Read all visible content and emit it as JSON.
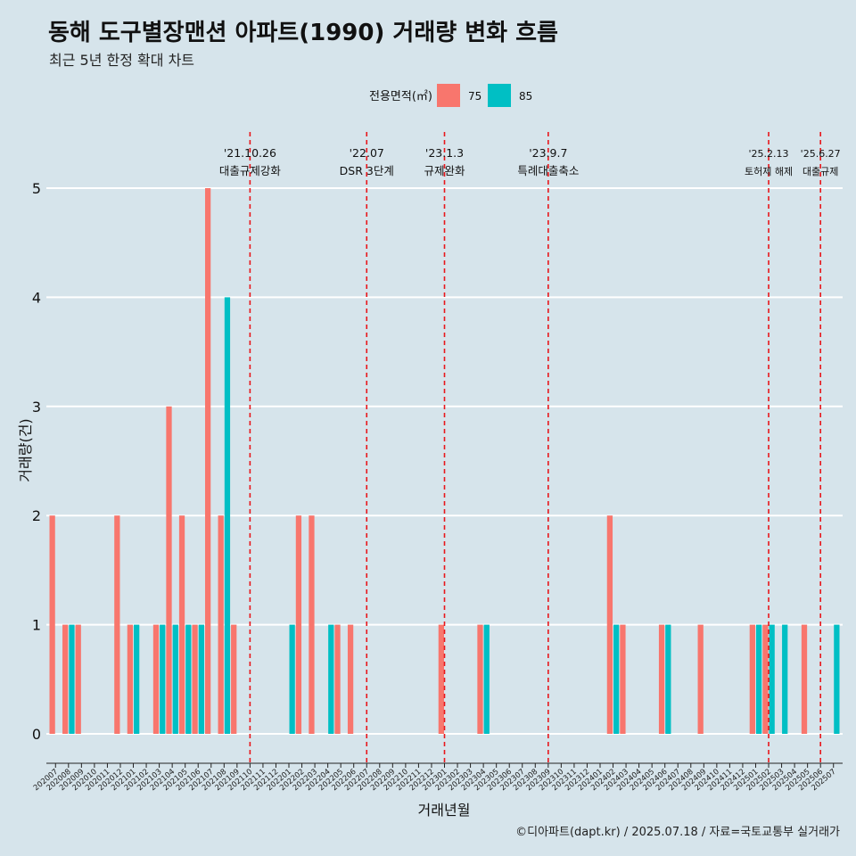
{
  "chart_data": {
    "type": "bar",
    "title": "동해 도구별장맨션 아파트(1990) 거래량 변화 흐름",
    "subtitle": "최근 5년 한정 확대 차트",
    "xlabel": "거래년월",
    "ylabel": "거래량(건)",
    "ylim": [
      0,
      5
    ],
    "y_ticks": [
      "0",
      "1",
      "2",
      "3",
      "4",
      "5"
    ],
    "legend": {
      "title": "전용면적(㎡)",
      "placement": "top"
    },
    "caption": "©디아파트(dapt.kr) / 2025.07.18 / 자료=국토교통부 실거래가",
    "colors": {
      "75": "#f8766d",
      "85": "#00bfc4"
    },
    "categories": [
      "202007",
      "202008",
      "202009",
      "202010",
      "202011",
      "202012",
      "202101",
      "202102",
      "202103",
      "202104",
      "202105",
      "202106",
      "202107",
      "202108",
      "202109",
      "202110",
      "202111",
      "202112",
      "202201",
      "202202",
      "202203",
      "202204",
      "202205",
      "202206",
      "202207",
      "202208",
      "202209",
      "202210",
      "202211",
      "202212",
      "202301",
      "202302",
      "202303",
      "202304",
      "202305",
      "202306",
      "202307",
      "202308",
      "202309",
      "202310",
      "202311",
      "202312",
      "202401",
      "202402",
      "202403",
      "202404",
      "202405",
      "202406",
      "202407",
      "202408",
      "202409",
      "202410",
      "202411",
      "202412",
      "202501",
      "202502",
      "202503",
      "202504",
      "202505",
      "202506",
      "202507"
    ],
    "series": [
      {
        "name": "75",
        "values": [
          2,
          1,
          1,
          0,
          0,
          2,
          1,
          0,
          1,
          3,
          2,
          1,
          5,
          2,
          1,
          0,
          0,
          0,
          0,
          2,
          2,
          0,
          1,
          1,
          0,
          0,
          0,
          0,
          0,
          0,
          1,
          0,
          0,
          1,
          0,
          0,
          0,
          0,
          0,
          0,
          0,
          0,
          0,
          2,
          1,
          0,
          0,
          1,
          0,
          0,
          1,
          0,
          0,
          0,
          1,
          1,
          0,
          0,
          1,
          0,
          0
        ]
      },
      {
        "name": "85",
        "values": [
          0,
          1,
          0,
          0,
          0,
          0,
          1,
          0,
          1,
          1,
          1,
          1,
          0,
          4,
          0,
          0,
          0,
          0,
          1,
          0,
          0,
          1,
          0,
          0,
          0,
          0,
          0,
          0,
          0,
          0,
          0,
          0,
          0,
          1,
          0,
          0,
          0,
          0,
          0,
          0,
          0,
          0,
          0,
          1,
          0,
          0,
          0,
          1,
          0,
          0,
          0,
          0,
          0,
          0,
          1,
          1,
          1,
          0,
          0,
          0,
          1
        ]
      }
    ],
    "annotations": [
      {
        "date": "'21.10.26",
        "label": "대출규제강화",
        "x": "202110"
      },
      {
        "date": "'22.07",
        "label": "DSR 3단계",
        "x": "202207"
      },
      {
        "date": "'23.1.3",
        "label": "규제완화",
        "x": "202301"
      },
      {
        "date": "'23.9.7",
        "label": "특례대출축소",
        "x": "202309"
      },
      {
        "date": "'25.2.13",
        "label": "토허제 해제",
        "x": "202502"
      },
      {
        "date": "'25.6.27",
        "label": "대출규제",
        "x": "202506"
      }
    ]
  }
}
